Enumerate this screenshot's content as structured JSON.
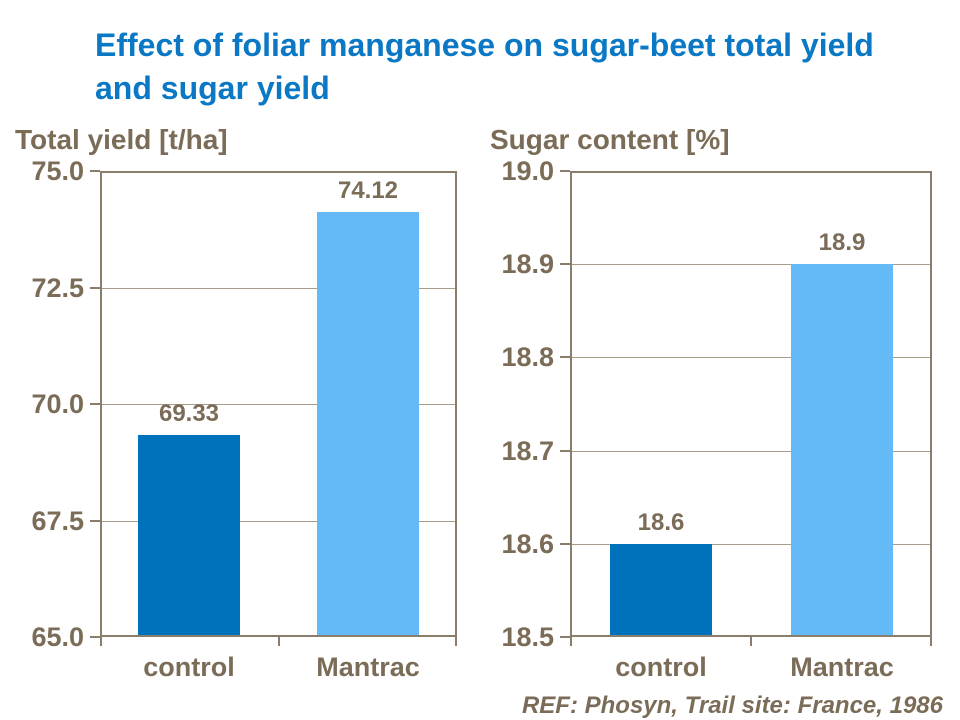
{
  "title": {
    "line1": "Effect of foliar manganese on sugar-beet total yield",
    "line2": "and sugar yield"
  },
  "footer": "REF: Phosyn, Trail site: France, 1986",
  "colors": {
    "title_blue": "#0a78c4",
    "control_bar": "#0071bb",
    "mantrac_bar": "#64baf7",
    "chart_text_brown": "#7b6c58",
    "axis_line": "#8b7d6b",
    "gridline": "#a79b8a",
    "background": "#ffffff"
  },
  "chart_data": [
    {
      "type": "bar",
      "title": "Total yield [t/ha]",
      "categories": [
        "control",
        "Mantrac"
      ],
      "values": [
        69.33,
        74.12
      ],
      "value_labels": [
        "69.33",
        "74.12"
      ],
      "bar_colors": [
        "#0071bb",
        "#64baf7"
      ],
      "ylim": [
        65.0,
        75.0
      ],
      "yticks": [
        65.0,
        67.5,
        70.0,
        72.5,
        75.0
      ],
      "ytick_labels": [
        "65.0",
        "67.5",
        "70.0",
        "72.5",
        "75.0"
      ],
      "xlabel": "",
      "ylabel": "Total yield [t/ha]",
      "grid": true,
      "legend": "none"
    },
    {
      "type": "bar",
      "title": "Sugar content [%]",
      "categories": [
        "control",
        "Mantrac"
      ],
      "values": [
        18.6,
        18.9
      ],
      "value_labels": [
        "18.6",
        "18.9"
      ],
      "bar_colors": [
        "#0071bb",
        "#64baf7"
      ],
      "ylim": [
        18.5,
        19.0
      ],
      "yticks": [
        18.5,
        18.6,
        18.7,
        18.8,
        18.9,
        19.0
      ],
      "ytick_labels": [
        "18.5",
        "18.6",
        "18.7",
        "18.8",
        "18.9",
        "19.0"
      ],
      "xlabel": "",
      "ylabel": "Sugar content [%]",
      "grid": true,
      "legend": "none"
    }
  ]
}
